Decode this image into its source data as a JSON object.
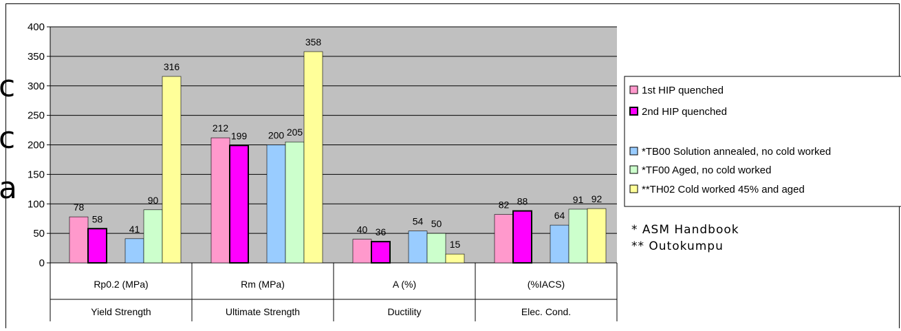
{
  "chart_data": {
    "type": "bar",
    "title": "",
    "xlabel": "",
    "ylabel": "",
    "ylim": [
      0,
      400
    ],
    "yticks": [
      0,
      50,
      100,
      150,
      200,
      250,
      300,
      350,
      400
    ],
    "grid": true,
    "plot_background": "#c0c0c0",
    "legend_position": "right",
    "categories": [
      {
        "label": "Rp0.2 (MPa)",
        "group": "Yield Strength"
      },
      {
        "label": "Rm (MPa)",
        "group": "Ultimate Strength"
      },
      {
        "label": "A (%)",
        "group": "Ductility"
      },
      {
        "label": "(%IACS)",
        "group": "Elec. Cond."
      }
    ],
    "series": [
      {
        "name": "1st HIP quenched",
        "color": "#ff99cc",
        "values": [
          78,
          212,
          40,
          82
        ]
      },
      {
        "name": "2nd HIP quenched",
        "color": "#ff00ff",
        "values": [
          58,
          199,
          36,
          88
        ]
      },
      {
        "name": "*TB00 Solution annealed, no cold worked",
        "color": "#99ccff",
        "values": [
          41,
          200,
          54,
          64
        ]
      },
      {
        "name": "*TF00 Aged, no cold worked",
        "color": "#ccffcc",
        "values": [
          90,
          205,
          50,
          91
        ]
      },
      {
        "name": "**TH02 Cold worked 45% and aged",
        "color": "#ffff99",
        "values": [
          316,
          358,
          15,
          92
        ]
      }
    ]
  },
  "notes": [
    "* ASM Handbook",
    "** Outokumpu"
  ],
  "stray_glyphs": [
    "c",
    "c",
    "a"
  ]
}
